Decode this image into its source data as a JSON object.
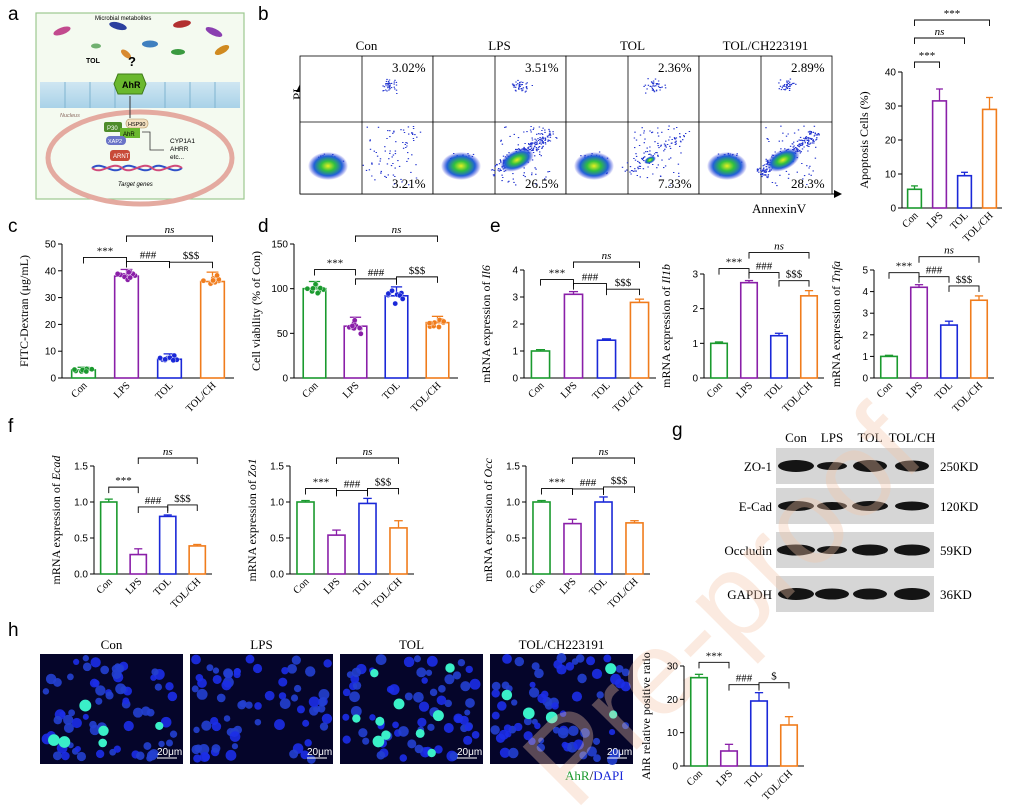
{
  "panel_labels": [
    "a",
    "b",
    "c",
    "d",
    "e",
    "f",
    "g",
    "h"
  ],
  "colors": {
    "Con": "#1a9a2e",
    "LPS": "#8a1fa8",
    "TOL": "#1a28d8",
    "TOL_CH": "#f07c1c",
    "grid": "#000000"
  },
  "schematic": {
    "top_label": "Microbial metabolites",
    "tol": "TOL",
    "question": "?",
    "ahr": "AhR",
    "nucleus": "Nucleus",
    "p30": "P30",
    "hsp90": "HSP90",
    "ahr_small": "AhR",
    "xap2": "XAP2",
    "arnt": "ARNT",
    "targets": [
      "CYP1A1",
      "AHRR",
      "etc..."
    ],
    "target_genes": "Target genes"
  },
  "flow": {
    "ylabel": "PI",
    "xlabel": "AnnexinV",
    "panels": [
      {
        "title": "Con",
        "ur": "3.02%",
        "lr": "3.21%"
      },
      {
        "title": "LPS",
        "ur": "3.51%",
        "lr": "26.5%"
      },
      {
        "title": "TOL",
        "ur": "2.36%",
        "lr": "7.33%"
      },
      {
        "title": "TOL/CH223191",
        "ur": "2.89%",
        "lr": "28.3%"
      }
    ]
  },
  "western": {
    "lanes": [
      "Con",
      "LPS",
      "TOL",
      "TOL/CH"
    ],
    "proteins": [
      "ZO-1",
      "E-Cad",
      "Occludin",
      "GAPDH"
    ],
    "sizes": [
      "250KD",
      "120KD",
      "59KD",
      "36KD"
    ]
  },
  "micro": {
    "titles": [
      "Con",
      "LPS",
      "TOL",
      "TOL/CH223191"
    ],
    "scale": "20μm",
    "stain": "AhR",
    "sep": "/",
    "dapi": "DAPI",
    "watermark": "Pre-proof"
  },
  "chart_data": [
    {
      "id": "b",
      "type": "bar",
      "title": "",
      "categories": [
        "Con",
        "LPS",
        "TOL",
        "TOL/CH"
      ],
      "values": [
        5.5,
        31.5,
        9.5,
        29
      ],
      "errors": [
        1,
        3.5,
        1,
        3.5
      ],
      "ylabel": "Apoptosis Cells (%)",
      "ylim": [
        0,
        40
      ],
      "yticks": [
        0,
        10,
        20,
        30,
        40
      ],
      "sig": [
        {
          "a": 0,
          "b": 1,
          "t": "***",
          "italic": false
        },
        {
          "a": 0,
          "b": 2,
          "t": "ns",
          "italic": true
        },
        {
          "a": 0,
          "b": 3,
          "t": "***",
          "italic": false
        }
      ]
    },
    {
      "id": "c",
      "type": "bar",
      "title": "",
      "categories": [
        "Con",
        "LPS",
        "TOL",
        "TOL/CH"
      ],
      "values": [
        3,
        38,
        7,
        36
      ],
      "errors": [
        1,
        2.5,
        2,
        3.5
      ],
      "ylabel": "FITC-Dextran (μg/mL)",
      "ylim": [
        0,
        50
      ],
      "yticks": [
        0,
        10,
        20,
        30,
        40,
        50
      ],
      "sig": [
        {
          "a": 0,
          "b": 1,
          "t": "***",
          "italic": false
        },
        {
          "a": 1,
          "b": 2,
          "t": "###",
          "italic": false
        },
        {
          "a": 2,
          "b": 3,
          "t": "$$$",
          "italic": false
        },
        {
          "a": 1,
          "b": 3,
          "t": "ns",
          "italic": true
        }
      ]
    },
    {
      "id": "d",
      "type": "bar",
      "title": "",
      "categories": [
        "Con",
        "LPS",
        "TOL",
        "TOL/CH"
      ],
      "values": [
        100,
        58,
        92,
        62
      ],
      "errors": [
        8,
        10,
        10,
        7
      ],
      "ylabel": "Cell viability (% of Con)",
      "ylim": [
        0,
        150
      ],
      "yticks": [
        0,
        50,
        100,
        150
      ],
      "sig": [
        {
          "a": 0,
          "b": 1,
          "t": "***",
          "italic": false
        },
        {
          "a": 1,
          "b": 2,
          "t": "###",
          "italic": false
        },
        {
          "a": 2,
          "b": 3,
          "t": "$$$",
          "italic": false
        },
        {
          "a": 1,
          "b": 3,
          "t": "ns",
          "italic": true
        }
      ]
    },
    {
      "id": "e1",
      "type": "bar",
      "title": "",
      "categories": [
        "Con",
        "LPS",
        "TOL",
        "TOL/CH"
      ],
      "values": [
        1,
        3.1,
        1.4,
        2.8
      ],
      "errors": [
        0.05,
        0.1,
        0.05,
        0.12
      ],
      "ylabel": "mRNA expression of ",
      "gene": "Il6",
      "ylim": [
        0,
        4
      ],
      "yticks": [
        0,
        1,
        2,
        3,
        4
      ],
      "sig": [
        {
          "a": 0,
          "b": 1,
          "t": "***",
          "italic": false
        },
        {
          "a": 1,
          "b": 2,
          "t": "###",
          "italic": false
        },
        {
          "a": 2,
          "b": 3,
          "t": "$$$",
          "italic": false
        },
        {
          "a": 1,
          "b": 3,
          "t": "ns",
          "italic": true
        }
      ]
    },
    {
      "id": "e2",
      "type": "bar",
      "title": "",
      "categories": [
        "Con",
        "LPS",
        "TOL",
        "TOL/CH"
      ],
      "values": [
        1,
        2.75,
        1.22,
        2.37
      ],
      "errors": [
        0.04,
        0.06,
        0.07,
        0.15
      ],
      "ylabel": "mRNA expression of ",
      "gene": "Il1b",
      "ylim": [
        0,
        3
      ],
      "yticks": [
        0,
        1,
        2,
        3
      ],
      "sig": [
        {
          "a": 0,
          "b": 1,
          "t": "***",
          "italic": false
        },
        {
          "a": 1,
          "b": 2,
          "t": "###",
          "italic": false
        },
        {
          "a": 2,
          "b": 3,
          "t": "$$$",
          "italic": false
        },
        {
          "a": 1,
          "b": 3,
          "t": "ns",
          "italic": true
        }
      ]
    },
    {
      "id": "e3",
      "type": "bar",
      "title": "",
      "categories": [
        "Con",
        "LPS",
        "TOL",
        "TOL/CH"
      ],
      "values": [
        1,
        4.2,
        2.45,
        3.6
      ],
      "errors": [
        0.05,
        0.12,
        0.18,
        0.2
      ],
      "ylabel": "mRNA expression of ",
      "gene": "Tnfa",
      "ylim": [
        0,
        5
      ],
      "yticks": [
        0,
        1,
        2,
        3,
        4,
        5
      ],
      "sig": [
        {
          "a": 0,
          "b": 1,
          "t": "***",
          "italic": false
        },
        {
          "a": 1,
          "b": 2,
          "t": "###",
          "italic": false
        },
        {
          "a": 2,
          "b": 3,
          "t": "$$$",
          "italic": false
        },
        {
          "a": 1,
          "b": 3,
          "t": "ns",
          "italic": true
        }
      ]
    },
    {
      "id": "f1",
      "type": "bar",
      "title": "",
      "categories": [
        "Con",
        "LPS",
        "TOL",
        "TOL/CH"
      ],
      "values": [
        1,
        0.27,
        0.8,
        0.39
      ],
      "errors": [
        0.04,
        0.08,
        0.02,
        0.02
      ],
      "ylabel": "mRNA expression of ",
      "gene": "Ecad",
      "ylim": [
        0,
        1.5
      ],
      "yticks": [
        0,
        0.5,
        1,
        1.5
      ],
      "tickfmt": [
        "0.0",
        "0.5",
        "1.0",
        "1.5"
      ],
      "sig": [
        {
          "a": 0,
          "b": 1,
          "t": "***",
          "italic": false
        },
        {
          "a": 1,
          "b": 2,
          "t": "###",
          "italic": false
        },
        {
          "a": 2,
          "b": 3,
          "t": "$$$",
          "italic": false
        },
        {
          "a": 1,
          "b": 3,
          "t": "ns",
          "italic": true
        }
      ]
    },
    {
      "id": "f2",
      "type": "bar",
      "title": "",
      "categories": [
        "Con",
        "LPS",
        "TOL",
        "TOL/CH"
      ],
      "values": [
        1,
        0.54,
        0.98,
        0.64
      ],
      "errors": [
        0.02,
        0.07,
        0.07,
        0.1
      ],
      "ylabel": "mRNA expression of ",
      "gene": "Zo1",
      "ylim": [
        0,
        1.5
      ],
      "yticks": [
        0,
        0.5,
        1,
        1.5
      ],
      "tickfmt": [
        "0.0",
        "0.5",
        "1.0",
        "1.5"
      ],
      "sig": [
        {
          "a": 0,
          "b": 1,
          "t": "***",
          "italic": false
        },
        {
          "a": 1,
          "b": 2,
          "t": "###",
          "italic": false
        },
        {
          "a": 2,
          "b": 3,
          "t": "$$$",
          "italic": false
        },
        {
          "a": 1,
          "b": 3,
          "t": "ns",
          "italic": true
        }
      ]
    },
    {
      "id": "f3",
      "type": "bar",
      "title": "",
      "categories": [
        "Con",
        "LPS",
        "TOL",
        "TOL/CH"
      ],
      "values": [
        1,
        0.7,
        1,
        0.71
      ],
      "errors": [
        0.02,
        0.06,
        0.07,
        0.03
      ],
      "ylabel": "mRNA expression of ",
      "gene": "Occ",
      "ylim": [
        0,
        1.5
      ],
      "yticks": [
        0,
        0.5,
        1,
        1.5
      ],
      "tickfmt": [
        "0.0",
        "0.5",
        "1.0",
        "1.5"
      ],
      "sig": [
        {
          "a": 0,
          "b": 1,
          "t": "***",
          "italic": false
        },
        {
          "a": 1,
          "b": 2,
          "t": "###",
          "italic": false
        },
        {
          "a": 2,
          "b": 3,
          "t": "$$$",
          "italic": false
        },
        {
          "a": 1,
          "b": 3,
          "t": "ns",
          "italic": true
        }
      ]
    },
    {
      "id": "h",
      "type": "bar",
      "title": "",
      "categories": [
        "Con",
        "LPS",
        "TOL",
        "TOL/CH"
      ],
      "values": [
        26.5,
        4.5,
        19.5,
        12.3
      ],
      "errors": [
        1,
        2,
        2.5,
        2.5
      ],
      "ylabel": "AhR relative positive ratio",
      "ylim": [
        0,
        30
      ],
      "yticks": [
        0,
        10,
        20,
        30
      ],
      "sig": [
        {
          "a": 0,
          "b": 1,
          "t": "***",
          "italic": false
        },
        {
          "a": 1,
          "b": 2,
          "t": "###",
          "italic": false
        },
        {
          "a": 2,
          "b": 3,
          "t": "$",
          "italic": false
        }
      ]
    }
  ]
}
